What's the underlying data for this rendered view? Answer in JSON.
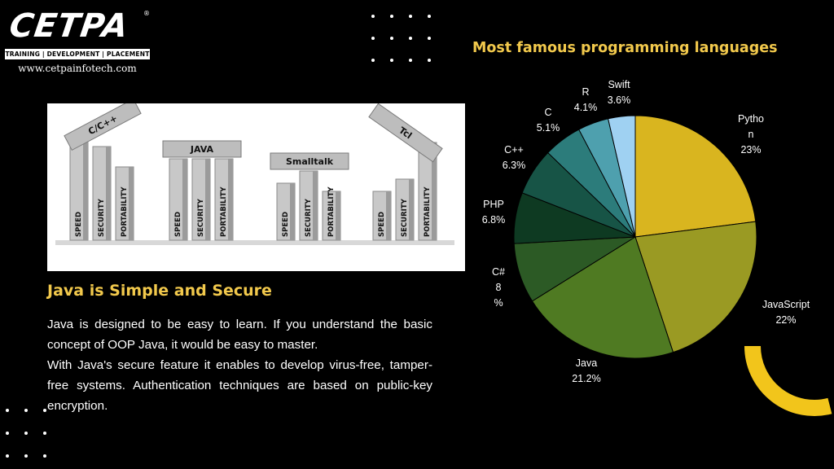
{
  "logo": {
    "brand": "CETPA",
    "registered": "®",
    "tagline": "TRAINING | DEVELOPMENT | PLACEMENT",
    "url": "www.cetpainfotech.com"
  },
  "illustration": {
    "pillars": [
      {
        "label": "C/C++",
        "bars": [
          "SPEED",
          "SECURITY",
          "PORTABILITY"
        ]
      },
      {
        "label": "JAVA",
        "bars": [
          "SPEED",
          "SECURITY",
          "PORTABILITY"
        ]
      },
      {
        "label": "Smalltalk",
        "bars": [
          "SPEED",
          "SECURITY",
          "PORTABILITY"
        ]
      },
      {
        "label": "Tcl",
        "bars": [
          "SPEED",
          "SECURITY",
          "PORTABILITY"
        ]
      }
    ]
  },
  "section": {
    "title": "Java is Simple and Secure",
    "paragraph1": "Java is designed to be easy to learn. If you understand the basic concept of OOP Java, it would be easy to master.",
    "paragraph2": "With Java's secure feature it enables to develop virus-free, tamper-free systems. Authentication techniques are based on public-key encryption."
  },
  "colors": {
    "accent": "#f2c94c",
    "arc": "#f2c51b"
  },
  "chart_data": {
    "type": "pie",
    "title": "Most famous programming languages",
    "slices": [
      {
        "label": "Python",
        "value": 23,
        "display": [
          "Pytho",
          "n",
          "23%"
        ],
        "color": "#d9b51f"
      },
      {
        "label": "JavaScript",
        "value": 22,
        "display": [
          "JavaScript",
          "22%"
        ],
        "color": "#9a9a23"
      },
      {
        "label": "Java",
        "value": 21.2,
        "display": [
          "Java",
          "21.2%"
        ],
        "color": "#4f7a22"
      },
      {
        "label": "C#",
        "value": 8,
        "display": [
          "C#",
          "8",
          "%"
        ],
        "color": "#2c5a25"
      },
      {
        "label": "PHP",
        "value": 6.8,
        "display": [
          "PHP",
          "6.8%"
        ],
        "color": "#0e3a22"
      },
      {
        "label": "C++",
        "value": 6.3,
        "display": [
          "C++",
          "6.3%"
        ],
        "color": "#175446"
      },
      {
        "label": "C",
        "value": 5.1,
        "display": [
          "C",
          "5.1%"
        ],
        "color": "#2c7c7b"
      },
      {
        "label": "R",
        "value": 4.1,
        "display": [
          "R",
          "4.1%"
        ],
        "color": "#4ea0ae"
      },
      {
        "label": "Swift",
        "value": 3.6,
        "display": [
          "Swift",
          "3.6%"
        ],
        "color": "#9fd1f2"
      }
    ]
  }
}
